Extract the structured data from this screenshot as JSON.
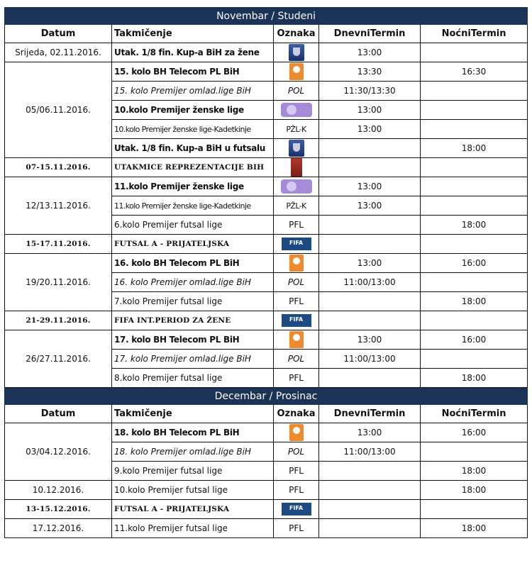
{
  "sections": [
    {
      "title": "Novembar / Studeni",
      "headers": [
        "Datum",
        "Takmičenje",
        "Oznaka",
        "DnevniTermin",
        "NoćniTermin"
      ],
      "groups": [
        {
          "date": "Srijeda, 02.11.2016.",
          "date_style": "",
          "rows": [
            {
              "competition": "Utak. 1/8 fin. Kup-a BiH za žene",
              "style": "bold",
              "mark": "",
              "mark_icon": "cup-trophy-icon",
              "day": "13:00",
              "night": ""
            }
          ]
        },
        {
          "date": "05/06.11.2016.",
          "date_style": "",
          "rows": [
            {
              "competition": "15. kolo BH Telecom PL BiH",
              "style": "bold",
              "mark": "",
              "mark_icon": "premier-league-logo-icon",
              "day": "13:30",
              "night": "16:30"
            },
            {
              "competition": "15. kolo Premijer omlad.lige BiH",
              "style": "italic",
              "mark": "POL",
              "mark_icon": "",
              "day": "11:30/13:30",
              "night": ""
            },
            {
              "competition": "10.kolo Premijer ženske lige",
              "style": "bold",
              "mark": "",
              "mark_icon": "womens-league-logo-icon",
              "day": "13:00",
              "night": ""
            },
            {
              "competition": "10.kolo Premijer ženske lige-Kadetkinje",
              "style": "narrow",
              "mark": "PŽL-K",
              "mark_icon": "",
              "day": "13:00",
              "night": ""
            },
            {
              "competition": "Utak. 1/8 fin. Kup-a BiH u futsalu",
              "style": "bold",
              "mark": "",
              "mark_icon": "cup-trophy-icon",
              "day": "",
              "night": "18:00"
            }
          ]
        },
        {
          "date": "07-15.11.2016.",
          "date_style": "serif",
          "rows": [
            {
              "competition": "UTAKMICE REPREZENTACIJE BIH",
              "style": "serif",
              "mark": "",
              "mark_icon": "national-team-logo-icon",
              "day": "",
              "night": ""
            }
          ]
        },
        {
          "date": "12/13.11.2016.",
          "date_style": "",
          "rows": [
            {
              "competition": "11.kolo Premijer ženske lige",
              "style": "bold",
              "mark": "",
              "mark_icon": "womens-league-logo-icon",
              "day": "13:00",
              "night": ""
            },
            {
              "competition": "11.kolo Premijer ženske lige-Kadetkinje",
              "style": "narrow",
              "mark": "PŽL-K",
              "mark_icon": "",
              "day": "13:00",
              "night": ""
            },
            {
              "competition": "6.kolo Premijer futsal lige",
              "style": "",
              "mark": "PFL",
              "mark_icon": "",
              "day": "",
              "night": "18:00"
            }
          ]
        },
        {
          "date": "15-17.11.2016.",
          "date_style": "serif",
          "rows": [
            {
              "competition": "FUTSAL A - PRIJATELJSKA",
              "style": "serif",
              "mark": "",
              "mark_icon": "fifa-logo-icon",
              "day": "",
              "night": ""
            }
          ]
        },
        {
          "date": "19/20.11.2016.",
          "date_style": "",
          "rows": [
            {
              "competition": "16. kolo BH Telecom PL BiH",
              "style": "bold",
              "mark": "",
              "mark_icon": "premier-league-logo-icon",
              "day": "13:00",
              "night": "16:00"
            },
            {
              "competition": "16. kolo Premijer omlad.lige BiH",
              "style": "italic",
              "mark": "POL",
              "mark_icon": "",
              "day": "11:00/13:00",
              "night": ""
            },
            {
              "competition": "7.kolo Premijer futsal lige",
              "style": "",
              "mark": "PFL",
              "mark_icon": "",
              "day": "",
              "night": "18:00"
            }
          ]
        },
        {
          "date": "21-29.11.2016.",
          "date_style": "serif",
          "rows": [
            {
              "competition": "FIFA INT.PERIOD ZA ŽENE",
              "style": "serif",
              "mark": "",
              "mark_icon": "fifa-logo-icon",
              "day": "",
              "night": ""
            }
          ]
        },
        {
          "date": "26/27.11.2016.",
          "date_style": "",
          "rows": [
            {
              "competition": "17. kolo BH Telecom PL BiH",
              "style": "bold",
              "mark": "",
              "mark_icon": "premier-league-logo-icon",
              "day": "13:00",
              "night": "16:00"
            },
            {
              "competition": "17. kolo Premijer omlad.lige BiH",
              "style": "italic",
              "mark": "POL",
              "mark_icon": "",
              "day": "11:00/13:00",
              "night": ""
            },
            {
              "competition": "8.kolo Premijer futsal lige",
              "style": "",
              "mark": "PFL",
              "mark_icon": "",
              "day": "",
              "night": "18:00"
            }
          ]
        }
      ]
    },
    {
      "title": "Decembar / Prosinac",
      "headers": [
        "Datum",
        "Takmičenje",
        "Oznaka",
        "DnevniTermin",
        "NoćniTermin"
      ],
      "groups": [
        {
          "date": "03/04.12.2016.",
          "date_style": "",
          "rows": [
            {
              "competition": "18. kolo BH Telecom PL BiH",
              "style": "bold",
              "mark": "",
              "mark_icon": "premier-league-logo-icon",
              "day": "13:00",
              "night": "16:00"
            },
            {
              "competition": "18. kolo Premijer omlad.lige BiH",
              "style": "italic",
              "mark": "POL",
              "mark_icon": "",
              "day": "11:00/13:00",
              "night": ""
            },
            {
              "competition": "9.kolo Premijer futsal lige",
              "style": "",
              "mark": "PFL",
              "mark_icon": "",
              "day": "",
              "night": "18:00"
            }
          ]
        },
        {
          "date": "10.12.2016.",
          "date_style": "",
          "rows": [
            {
              "competition": "10.kolo Premijer futsal lige",
              "style": "",
              "mark": "PFL",
              "mark_icon": "",
              "day": "",
              "night": "18:00"
            }
          ]
        },
        {
          "date": "13-15.12.2016.",
          "date_style": "serif",
          "rows": [
            {
              "competition": "FUTSAL A - PRIJATELJSKA",
              "style": "serif",
              "mark": "",
              "mark_icon": "fifa-logo-icon",
              "day": "",
              "night": ""
            }
          ]
        },
        {
          "date": "17.12.2016.",
          "date_style": "",
          "rows": [
            {
              "competition": "11.kolo Premijer futsal lige",
              "style": "",
              "mark": "PFL",
              "mark_icon": "",
              "day": "",
              "night": "18:00"
            }
          ]
        }
      ]
    }
  ],
  "icon_colors": {
    "cup-trophy-icon": "#2a4588",
    "premier-league-logo-icon": "#ee8b2c",
    "womens-league-logo-icon": "#a58ad8",
    "national-team-logo-icon": "#9b2c24",
    "fifa-logo-icon": "#1c4a85"
  },
  "fifa_logo_text": "FIFA",
  "title_bar_color": "#1b3356"
}
